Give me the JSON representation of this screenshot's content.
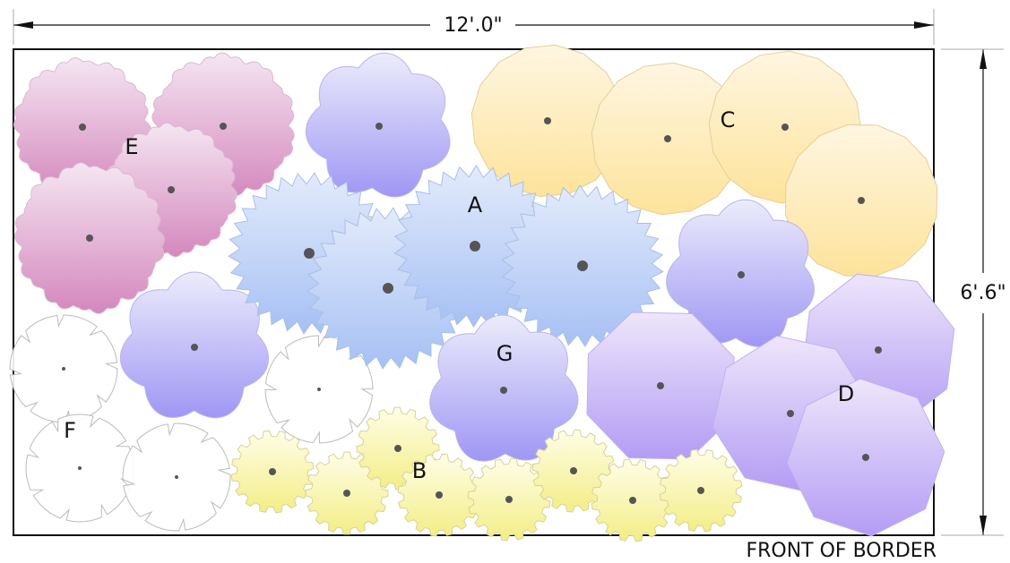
{
  "dimensions": {
    "width": "12'.0\"",
    "depth": "6'.6\""
  },
  "caption": "FRONT OF BORDER",
  "groups": [
    {
      "label": "E"
    },
    {
      "label": "A"
    },
    {
      "label": "C"
    },
    {
      "label": "G"
    },
    {
      "label": "D"
    },
    {
      "label": "F"
    },
    {
      "label": "B"
    }
  ]
}
